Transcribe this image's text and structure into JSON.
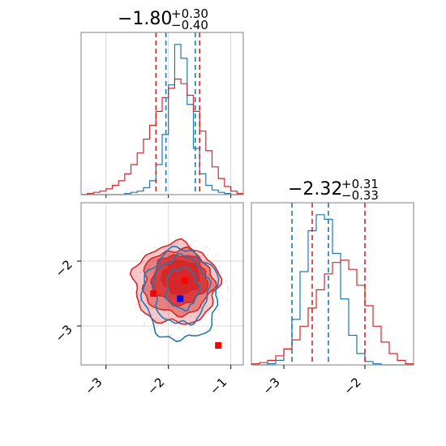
{
  "chart_data": [
    {
      "type": "histogram-step",
      "panel": "marginal-param-1",
      "title": {
        "value": "−1.80",
        "upper": "+0.30",
        "lower": "−0.40"
      },
      "xlim": [
        -3.4,
        -0.8
      ],
      "grid": true,
      "x": [
        -3.35,
        -3.25,
        -3.15,
        -3.05,
        -2.95,
        -2.85,
        -2.75,
        -2.65,
        -2.55,
        -2.45,
        -2.35,
        -2.25,
        -2.15,
        -2.05,
        -1.95,
        -1.85,
        -1.75,
        -1.65,
        -1.55,
        -1.45,
        -1.35,
        -1.25,
        -1.15,
        -1.05,
        -0.95,
        -0.85
      ],
      "series": [
        {
          "color": "#1f77b4",
          "values": [
            0,
            0,
            0,
            0,
            0,
            0,
            0,
            1,
            2,
            3,
            6,
            12,
            26,
            52,
            95,
            130,
            118,
            78,
            40,
            18,
            8,
            4,
            2,
            1,
            0,
            0
          ],
          "quantiles": [
            -2.04,
            -1.57
          ]
        },
        {
          "color": "#d62728",
          "values": [
            0,
            1,
            2,
            3,
            5,
            8,
            12,
            18,
            26,
            36,
            48,
            60,
            72,
            84,
            92,
            100,
            96,
            86,
            72,
            55,
            38,
            24,
            14,
            7,
            3,
            1
          ],
          "quantiles": [
            -2.2,
            -1.5
          ]
        }
      ]
    },
    {
      "type": "histogram-step",
      "panel": "marginal-param-2",
      "title": {
        "value": "−2.32",
        "upper": "+0.31",
        "lower": "−0.33"
      },
      "xlim": [
        -3.4,
        -1.4
      ],
      "grid": false,
      "tick_labels": [
        "−3",
        "−2"
      ],
      "x": [
        -3.35,
        -3.25,
        -3.15,
        -3.05,
        -2.95,
        -2.85,
        -2.75,
        -2.65,
        -2.55,
        -2.45,
        -2.35,
        -2.25,
        -2.15,
        -2.05,
        -1.95,
        -1.85,
        -1.75,
        -1.65,
        -1.55,
        -1.45
      ],
      "series": [
        {
          "color": "#1f77b4",
          "values": [
            0,
            0,
            1,
            4,
            14,
            40,
            82,
            118,
            132,
            128,
            98,
            58,
            26,
            10,
            3,
            1,
            0,
            0,
            0,
            0
          ],
          "quantiles": [
            -2.9,
            -2.45
          ]
        },
        {
          "color": "#d62728",
          "values": [
            1,
            2,
            4,
            8,
            14,
            22,
            34,
            50,
            66,
            80,
            90,
            92,
            84,
            70,
            52,
            34,
            20,
            10,
            4,
            1
          ],
          "quantiles": [
            -2.65,
            -2.0
          ]
        }
      ]
    },
    {
      "type": "contour-2d",
      "panel": "joint",
      "xlim": [
        -3.4,
        -0.8
      ],
      "ylim": [
        -3.6,
        -1.1
      ],
      "grid": true,
      "x_tick_labels": [
        "−3",
        "−2",
        "−1"
      ],
      "y_tick_labels": [
        "−2",
        "−3"
      ],
      "contours": [
        {
          "color": "#d62728",
          "filled": true,
          "center": [
            -1.88,
            -2.35
          ],
          "radii": [
            0.68,
            0.62
          ],
          "alpha": 0.25
        },
        {
          "color": "#d62728",
          "filled": true,
          "center": [
            -1.85,
            -2.32
          ],
          "radii": [
            0.56,
            0.5
          ],
          "alpha": 0.45
        },
        {
          "color": "#d62728",
          "filled": true,
          "center": [
            -1.82,
            -2.28
          ],
          "radii": [
            0.44,
            0.38
          ],
          "alpha": 0.75
        },
        {
          "color": "#d62728",
          "filled": true,
          "center": [
            -1.8,
            -2.25
          ],
          "radii": [
            0.3,
            0.26
          ],
          "alpha": 0.95
        },
        {
          "color": "#1f77b4",
          "filled": false,
          "center": [
            -1.8,
            -2.52
          ],
          "radii": [
            0.6,
            0.7
          ],
          "alpha": 1
        },
        {
          "color": "#1f77b4",
          "filled": false,
          "center": [
            -1.8,
            -2.45
          ],
          "radii": [
            0.44,
            0.52
          ],
          "alpha": 1
        },
        {
          "color": "#1f77b4",
          "filled": false,
          "center": [
            -1.78,
            -2.42
          ],
          "radii": [
            0.26,
            0.32
          ],
          "alpha": 1
        }
      ],
      "markers": [
        {
          "color": "#ff0000",
          "shape": "square",
          "x": -2.24,
          "y": -2.5
        },
        {
          "color": "#ff0000",
          "shape": "square",
          "x": -1.74,
          "y": -2.3
        },
        {
          "color": "#ff0000",
          "shape": "square",
          "x": -1.2,
          "y": -3.3
        },
        {
          "color": "#0000ff",
          "shape": "square",
          "x": -1.81,
          "y": -2.58
        }
      ]
    }
  ],
  "axis_tick_labels": {
    "joint_x": [
      "−3",
      "−2",
      "−1"
    ],
    "joint_y": [
      "−2",
      "−3"
    ],
    "marginal2_x": [
      "−3",
      "−2"
    ]
  }
}
